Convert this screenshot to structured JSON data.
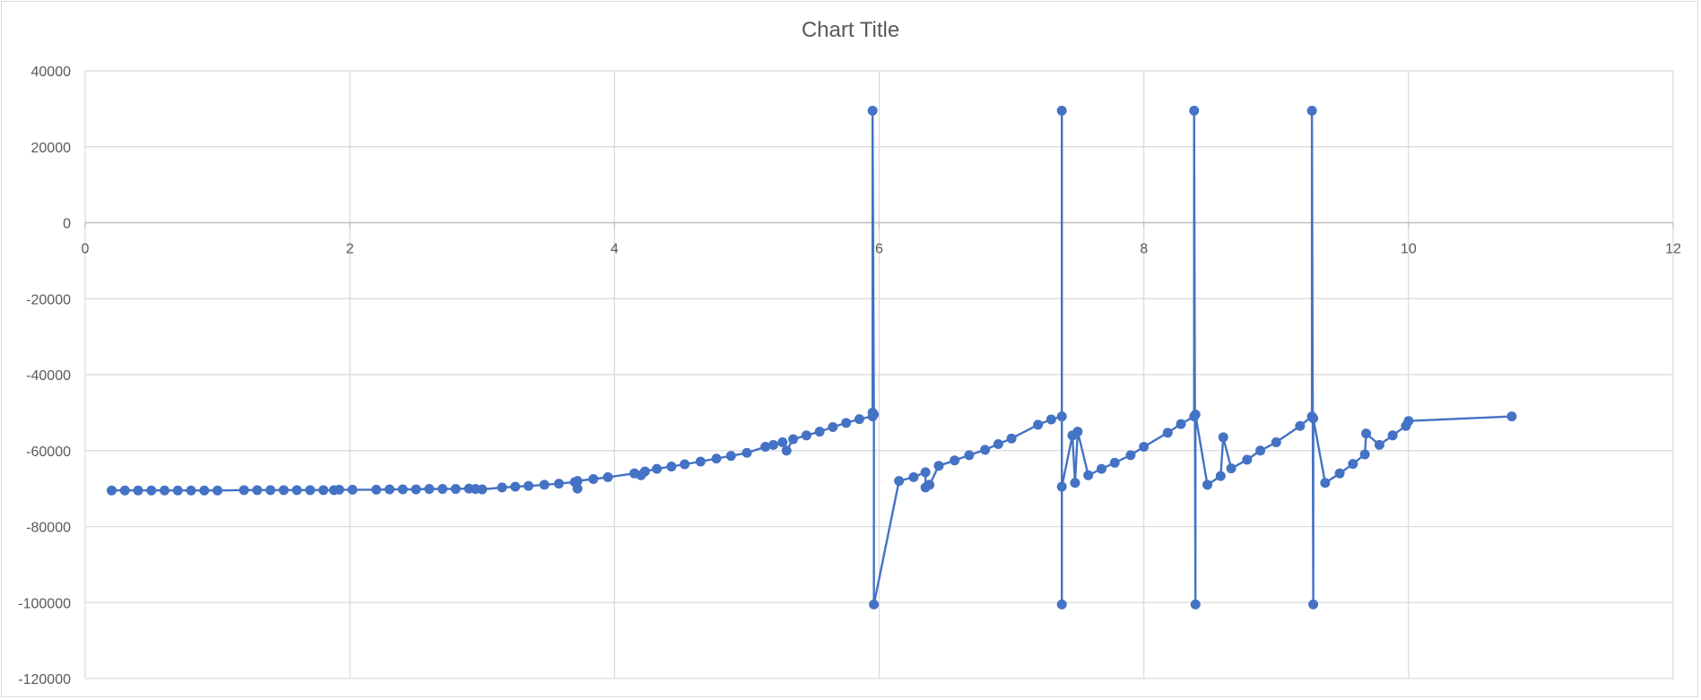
{
  "chart_data": {
    "type": "scatter",
    "title": "Chart Title",
    "xlabel": "",
    "ylabel": "",
    "xlim": [
      0,
      12
    ],
    "ylim": [
      -120000,
      40000
    ],
    "xticks": [
      0,
      2,
      4,
      6,
      8,
      10,
      12
    ],
    "yticks": [
      40000,
      20000,
      0,
      -20000,
      -40000,
      -60000,
      -80000,
      -100000,
      -120000
    ],
    "x_tick_labels": [
      "0",
      "2",
      "4",
      "6",
      "8",
      "10",
      "12"
    ],
    "y_tick_labels": [
      "40000",
      "20000",
      "0",
      "-20000",
      "-40000",
      "-60000",
      "-80000",
      "-100000",
      "-120000"
    ],
    "grid": true,
    "legend": "none",
    "series": [
      {
        "color": "#4472c4",
        "markers": true,
        "lines": true,
        "points": [
          [
            0.2,
            -70500
          ],
          [
            0.3,
            -70500
          ],
          [
            0.4,
            -70500
          ],
          [
            0.5,
            -70500
          ],
          [
            0.6,
            -70500
          ],
          [
            0.7,
            -70500
          ],
          [
            0.8,
            -70500
          ],
          [
            0.9,
            -70500
          ],
          [
            1.0,
            -70500
          ],
          [
            1.2,
            -70400
          ],
          [
            1.3,
            -70400
          ],
          [
            1.4,
            -70400
          ],
          [
            1.5,
            -70400
          ],
          [
            1.6,
            -70400
          ],
          [
            1.7,
            -70400
          ],
          [
            1.8,
            -70400
          ],
          [
            1.88,
            -70400
          ],
          [
            1.92,
            -70300
          ],
          [
            2.02,
            -70300
          ],
          [
            2.2,
            -70300
          ],
          [
            2.3,
            -70200
          ],
          [
            2.4,
            -70200
          ],
          [
            2.5,
            -70200
          ],
          [
            2.6,
            -70100
          ],
          [
            2.7,
            -70100
          ],
          [
            2.8,
            -70100
          ],
          [
            2.9,
            -70000
          ],
          [
            2.95,
            -70100
          ],
          [
            3.0,
            -70200
          ],
          [
            3.15,
            -69700
          ],
          [
            3.25,
            -69500
          ],
          [
            3.35,
            -69300
          ],
          [
            3.47,
            -69000
          ],
          [
            3.58,
            -68700
          ],
          [
            3.7,
            -68300
          ],
          [
            3.72,
            -70000
          ],
          [
            3.72,
            -68000
          ],
          [
            3.84,
            -67500
          ],
          [
            3.95,
            -67000
          ],
          [
            4.15,
            -66000
          ],
          [
            4.2,
            -66500
          ],
          [
            4.23,
            -65500
          ],
          [
            4.32,
            -64800
          ],
          [
            4.43,
            -64200
          ],
          [
            4.53,
            -63600
          ],
          [
            4.65,
            -62900
          ],
          [
            4.77,
            -62100
          ],
          [
            4.88,
            -61400
          ],
          [
            5.0,
            -60600
          ],
          [
            5.14,
            -59000
          ],
          [
            5.2,
            -58500
          ],
          [
            5.27,
            -57800
          ],
          [
            5.3,
            -60000
          ],
          [
            5.35,
            -57000
          ],
          [
            5.45,
            -56000
          ],
          [
            5.55,
            -55000
          ],
          [
            5.65,
            -53800
          ],
          [
            5.75,
            -52700
          ],
          [
            5.85,
            -51700
          ],
          [
            5.95,
            -51000
          ],
          [
            5.95,
            -50000
          ],
          [
            5.95,
            29500
          ],
          [
            5.96,
            -50500
          ],
          [
            5.96,
            -100500
          ],
          [
            6.15,
            -68000
          ],
          [
            6.26,
            -67000
          ],
          [
            6.35,
            -65700
          ],
          [
            6.35,
            -69700
          ],
          [
            6.38,
            -69000
          ],
          [
            6.45,
            -64000
          ],
          [
            6.57,
            -62600
          ],
          [
            6.68,
            -61200
          ],
          [
            6.8,
            -59800
          ],
          [
            6.9,
            -58300
          ],
          [
            7.0,
            -56800
          ],
          [
            7.2,
            -53200
          ],
          [
            7.3,
            -51800
          ],
          [
            7.38,
            -51000
          ],
          [
            7.38,
            29500
          ],
          [
            7.38,
            -100500
          ],
          [
            7.38,
            -69500
          ],
          [
            7.46,
            -56000
          ],
          [
            7.48,
            -68500
          ],
          [
            7.5,
            -55000
          ],
          [
            7.58,
            -66500
          ],
          [
            7.68,
            -64800
          ],
          [
            7.78,
            -63200
          ],
          [
            7.9,
            -61200
          ],
          [
            8.0,
            -59000
          ],
          [
            8.18,
            -55300
          ],
          [
            8.28,
            -53000
          ],
          [
            8.38,
            -51000
          ],
          [
            8.38,
            29500
          ],
          [
            8.39,
            -100500
          ],
          [
            8.39,
            -50500
          ],
          [
            8.48,
            -69000
          ],
          [
            8.58,
            -66700
          ],
          [
            8.6,
            -56500
          ],
          [
            8.66,
            -64700
          ],
          [
            8.78,
            -62400
          ],
          [
            8.88,
            -60000
          ],
          [
            9.0,
            -57800
          ],
          [
            9.18,
            -53500
          ],
          [
            9.27,
            -51000
          ],
          [
            9.27,
            29500
          ],
          [
            9.28,
            -100500
          ],
          [
            9.28,
            -51500
          ],
          [
            9.37,
            -68500
          ],
          [
            9.48,
            -66000
          ],
          [
            9.58,
            -63500
          ],
          [
            9.67,
            -61000
          ],
          [
            9.68,
            -55500
          ],
          [
            9.78,
            -58500
          ],
          [
            9.88,
            -56000
          ],
          [
            9.98,
            -53500
          ],
          [
            10.0,
            -52200
          ],
          [
            10.78,
            -51000
          ]
        ]
      }
    ]
  }
}
